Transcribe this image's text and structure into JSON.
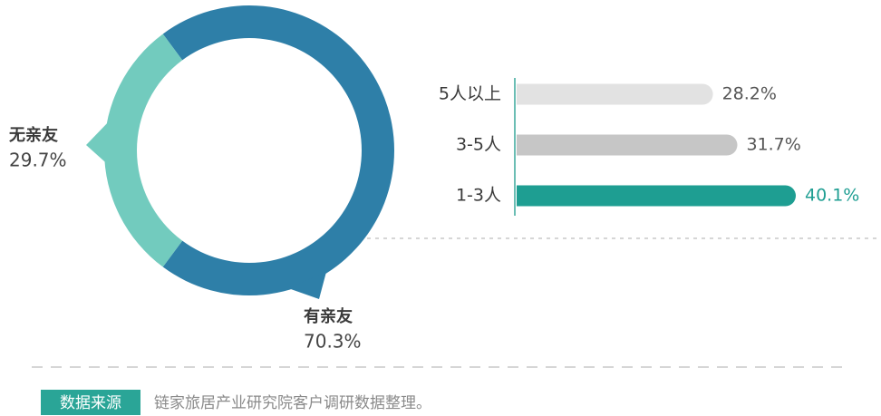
{
  "chart_data": [
    {
      "type": "pie",
      "categories": [
        "有亲友",
        "无亲友"
      ],
      "values": [
        70.3,
        29.7
      ],
      "value_labels": [
        "70.3%",
        "29.7%"
      ],
      "colors": [
        "#2e7fa8",
        "#72cbbe"
      ]
    },
    {
      "type": "bar",
      "orientation": "horizontal",
      "categories": [
        "5人以上",
        "3-5人",
        "1-3人"
      ],
      "values": [
        28.2,
        31.7,
        40.1
      ],
      "value_labels": [
        "28.2%",
        "31.7%",
        "40.1%"
      ],
      "colors": [
        "#e2e2e2",
        "#c6c6c6",
        "#1e9e92"
      ]
    }
  ],
  "footer": {
    "badge": "数据来源",
    "text": "链家旅居产业研究院客户调研数据整理。"
  }
}
